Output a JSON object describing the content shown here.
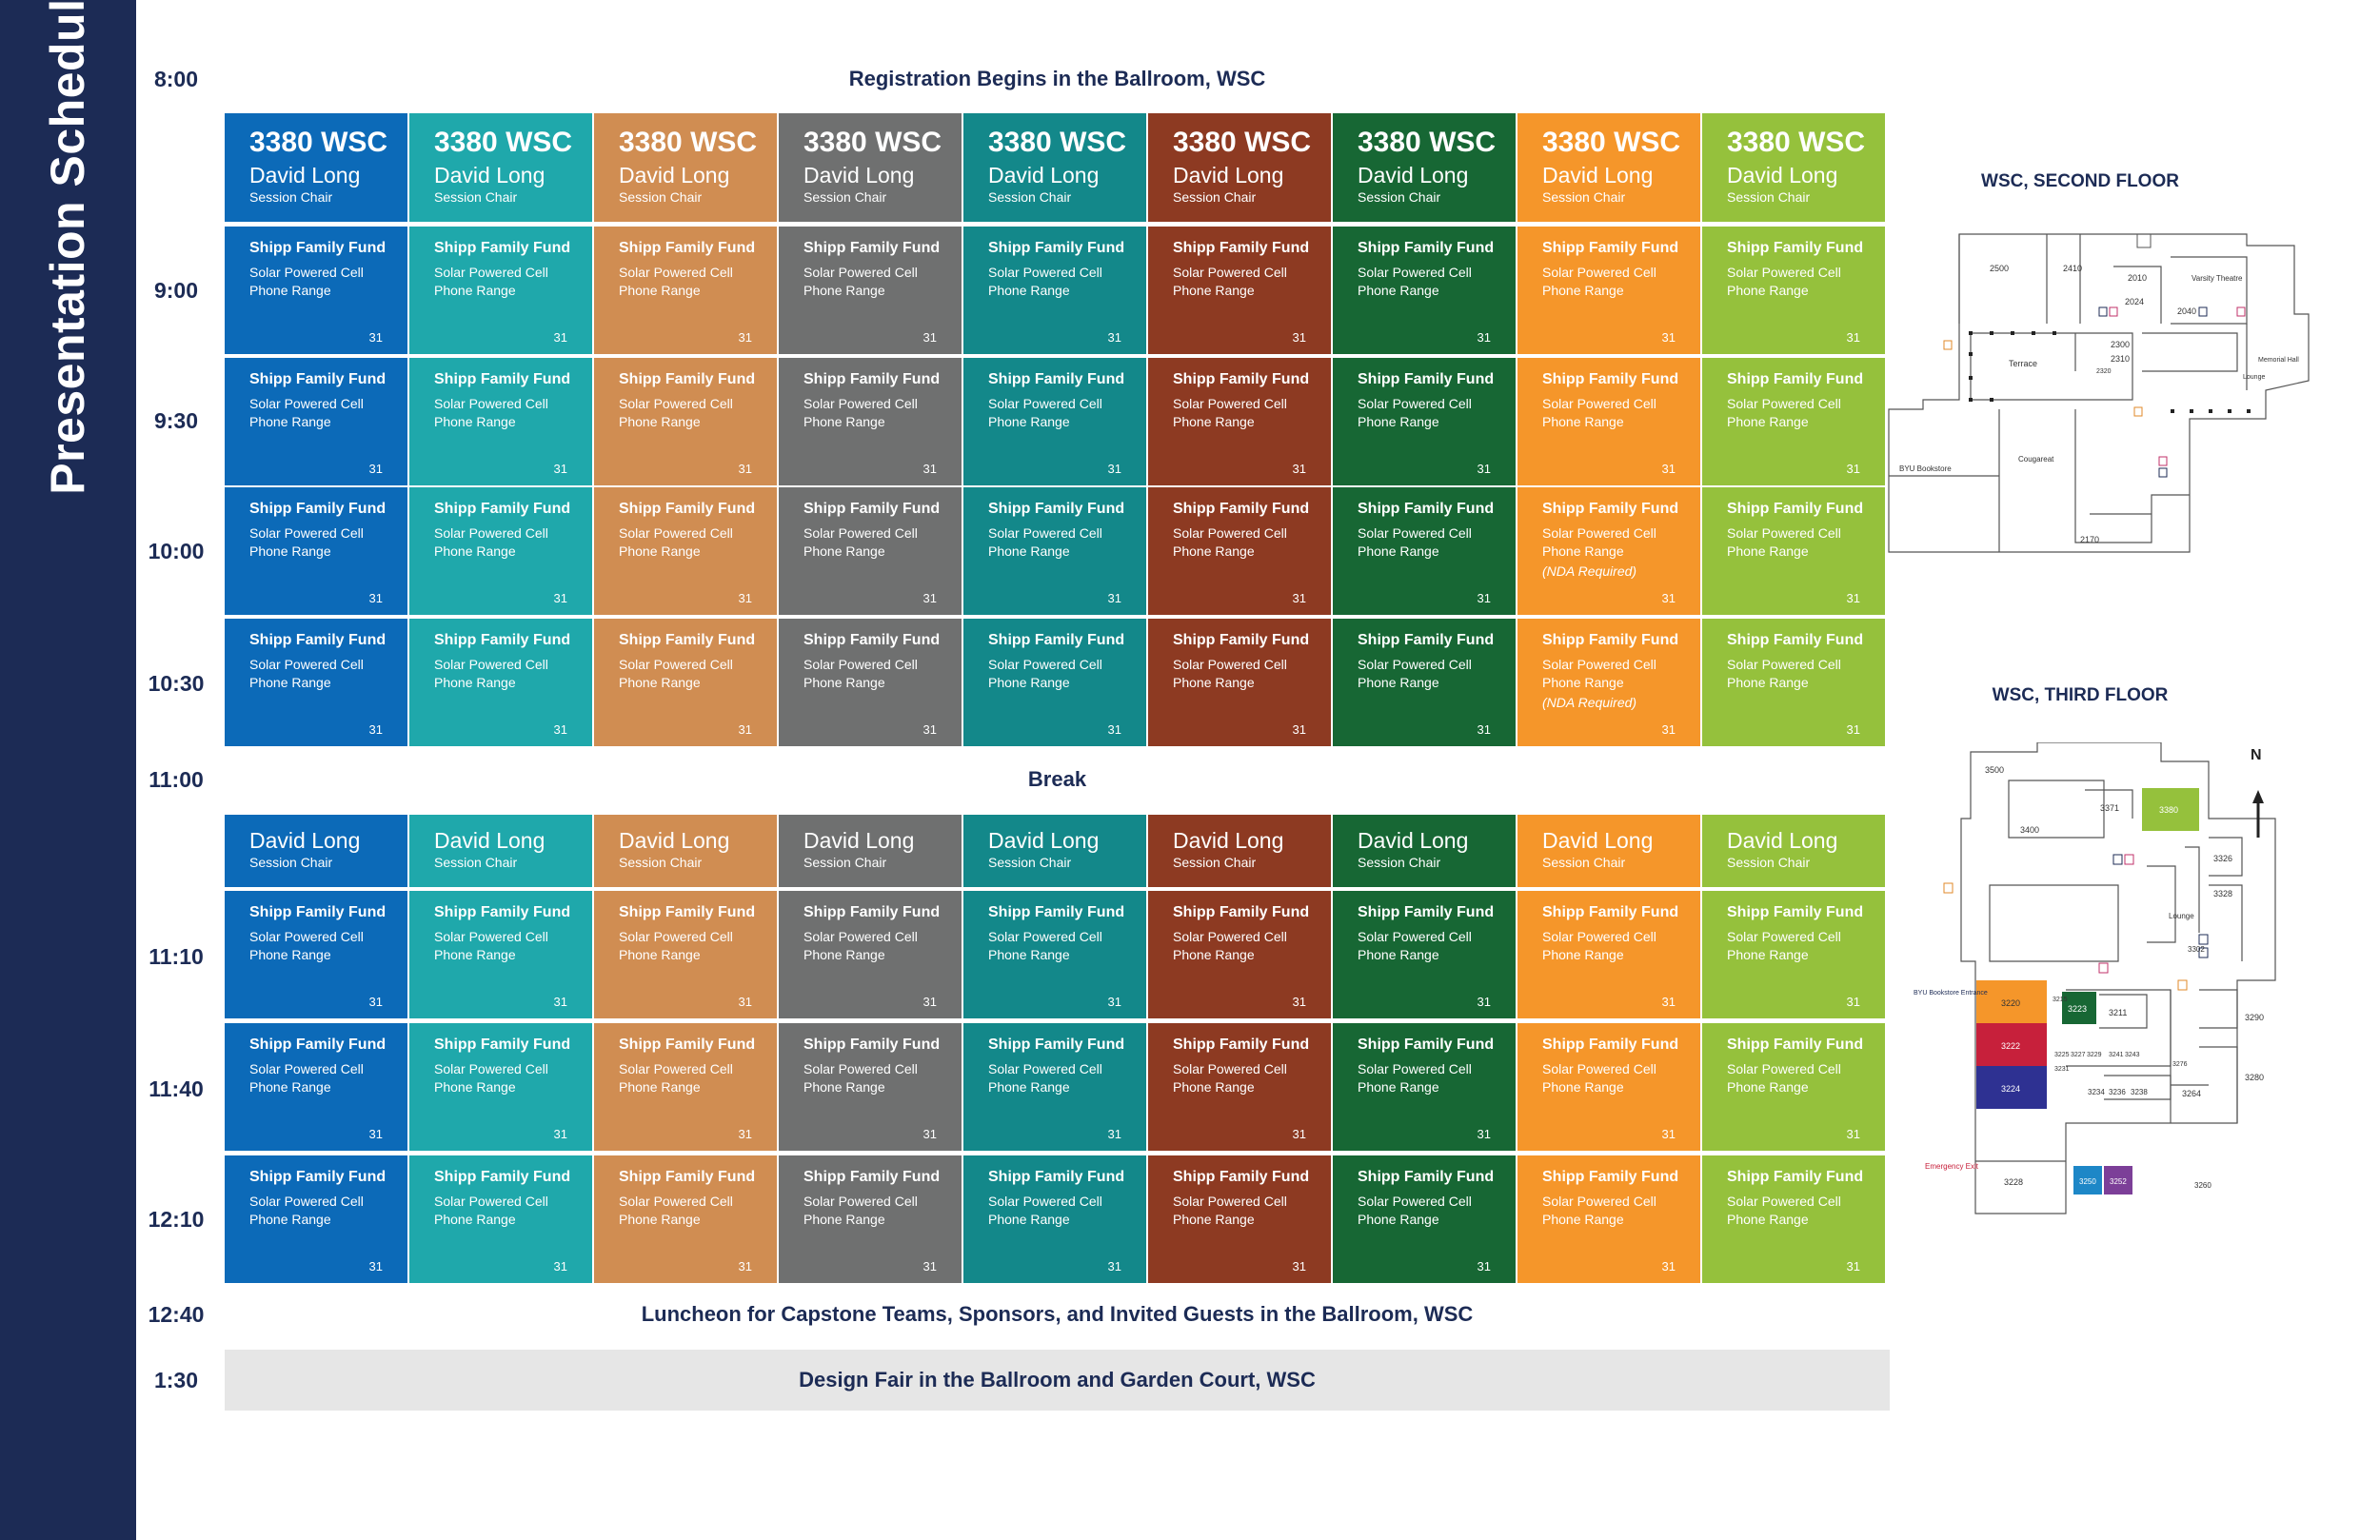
{
  "page_title": "Presentation Schedule",
  "times": [
    "8:00",
    "9:00",
    "9:30",
    "10:00",
    "10:30",
    "11:00",
    "11:10",
    "11:40",
    "12:10",
    "12:40",
    "1:30"
  ],
  "banners": {
    "registration": "Registration Begins in the Ballroom, WSC",
    "break": "Break",
    "luncheon": "Luncheon for Capstone Teams, Sponsors, and Invited Guests in the Ballroom, WSC",
    "design_fair": "Design Fair in the Ballroom and Garden Court, WSC"
  },
  "columns": [
    {
      "color": "#0c6ab8",
      "room": "3380 WSC",
      "chair": "David Long",
      "role": "Session Chair"
    },
    {
      "color": "#1fa8ab",
      "room": "3380 WSC",
      "chair": "David Long",
      "role": "Session Chair"
    },
    {
      "color": "#d08d52",
      "room": "3380 WSC",
      "chair": "David Long",
      "role": "Session Chair"
    },
    {
      "color": "#6f7070",
      "room": "3380 WSC",
      "chair": "David Long",
      "role": "Session Chair"
    },
    {
      "color": "#13888a",
      "room": "3380 WSC",
      "chair": "David Long",
      "role": "Session Chair"
    },
    {
      "color": "#8d3a22",
      "room": "3380 WSC",
      "chair": "David Long",
      "role": "Session Chair"
    },
    {
      "color": "#176734",
      "room": "3380 WSC",
      "chair": "David Long",
      "role": "Session Chair"
    },
    {
      "color": "#f5962a",
      "room": "3380 WSC",
      "chair": "David Long",
      "role": "Session Chair"
    },
    {
      "color": "#95c13c",
      "room": "3380 WSC",
      "chair": "David Long",
      "role": "Session Chair"
    }
  ],
  "session": {
    "sponsor": "Shipp Family Fund",
    "line1": "Solar Powered Cell",
    "line2": "Phone Range",
    "number": "31",
    "nda": "(NDA Required)"
  },
  "maps": {
    "second_floor": {
      "title": "WSC, SECOND FLOOR",
      "labels": [
        "2500",
        "2410",
        "2010",
        "Varsity Theatre",
        "2024",
        "2040",
        "2300",
        "2310",
        "Terrace",
        "2320",
        "Memorial Hall",
        "Lounge",
        "BYU Bookstore",
        "Cougareat",
        "2170"
      ]
    },
    "third_floor": {
      "title": "WSC, THIRD FLOOR",
      "labels": [
        "3500",
        "3371",
        "3380",
        "3400",
        "3326",
        "3328",
        "Lounge",
        "3302",
        "BYU Bookstore Entrance",
        "3220",
        "3222",
        "3224",
        "3228",
        "3215",
        "3223",
        "3211",
        "3290",
        "3280",
        "3225",
        "3227",
        "3229",
        "3231",
        "3241",
        "3243",
        "3276",
        "3234",
        "3236",
        "3238",
        "3264",
        "Emergency Exit",
        "3250",
        "3252",
        "3260",
        "N"
      ]
    }
  }
}
